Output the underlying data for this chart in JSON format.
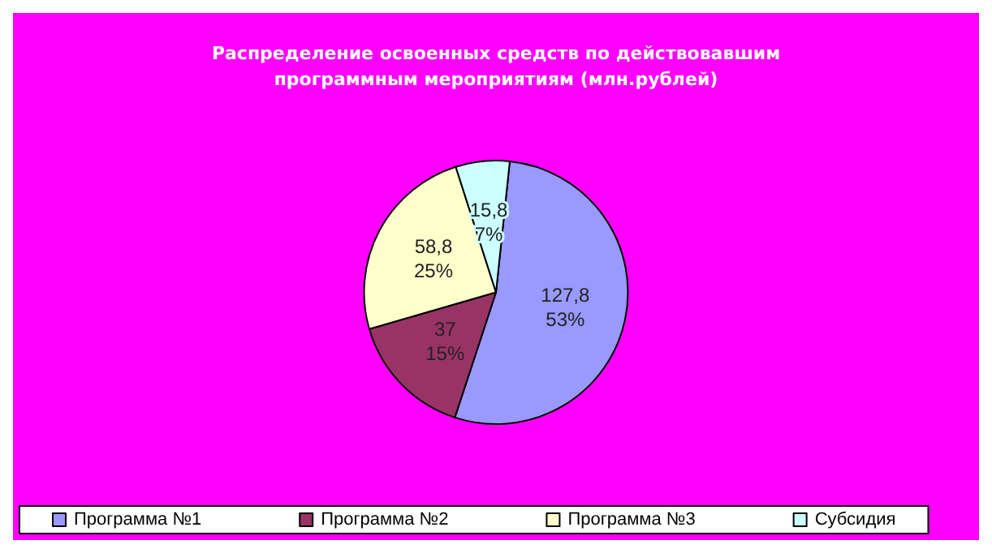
{
  "chart_data": {
    "type": "pie",
    "title": "Распределение освоенных средств по действовавшим\nпрограммным мероприятиям (млн.рублей)",
    "categories": [
      "Программа №1",
      "Программа №2",
      "Программа №3",
      "Субсидия"
    ],
    "values": [
      127.8,
      37,
      58.8,
      15.8
    ],
    "colors": [
      "#9999ff",
      "#993366",
      "#ffffcc",
      "#ccffff"
    ],
    "value_labels": [
      "127,8\n53%",
      "37\n15%",
      "58,8\n25%",
      "15,8\n7%"
    ],
    "legend": "bottom"
  }
}
